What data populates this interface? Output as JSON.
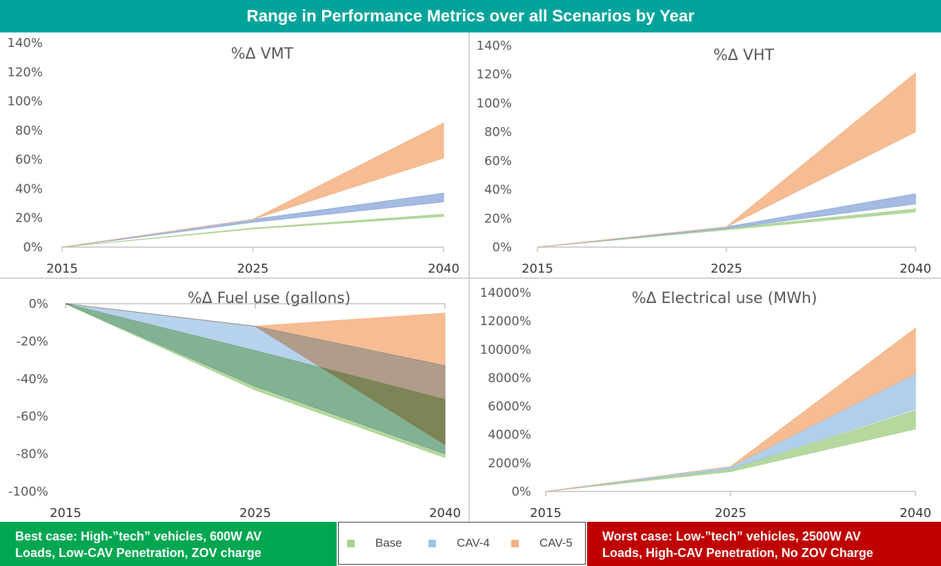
{
  "header": {
    "title": "Range in Performance Metrics over all Scenarios by Year"
  },
  "colors": {
    "header_bg": "#00a39a",
    "base": "#a9d18e",
    "cav4": "#9dc3e6",
    "cav5": "#f4b183",
    "best_bg": "#00a650",
    "worst_bg": "#c00000"
  },
  "legend": [
    {
      "label": "Base",
      "color": "#a9d18e"
    },
    {
      "label": "CAV-4",
      "color": "#9dc3e6"
    },
    {
      "label": "CAV-5",
      "color": "#f4b183"
    }
  ],
  "best_case": {
    "line1": "Best case: High-”tech”  vehicles, 600W AV",
    "line2": "Loads, Low-CAV Penetration, ZOV charge"
  },
  "worst_case": {
    "line1": "Worst case: Low-”tech” vehicles, 2500W AV",
    "line2": "Loads, High-CAV Penetration, No ZOV Charge"
  },
  "chart_data": [
    {
      "id": "vmt",
      "type": "area",
      "title": "%Δ VMT",
      "x": [
        "2015",
        "2025",
        "2040"
      ],
      "ylim": [
        0,
        140
      ],
      "yticks": [
        "0%",
        "20%",
        "40%",
        "60%",
        "80%",
        "100%",
        "120%",
        "140%"
      ],
      "series": [
        {
          "name": "Base",
          "lower": [
            0,
            12.5,
            21
          ],
          "upper": [
            0,
            13,
            22.5
          ]
        },
        {
          "name": "CAV-4",
          "lower": [
            0,
            17,
            31
          ],
          "upper": [
            0,
            19,
            37
          ]
        },
        {
          "name": "CAV-5",
          "lower": [
            0,
            19,
            61
          ],
          "upper": [
            0,
            19,
            85
          ]
        }
      ]
    },
    {
      "id": "vht",
      "type": "area",
      "title": "%Δ VHT",
      "x": [
        "2015",
        "2025",
        "2040"
      ],
      "ylim": [
        0,
        140
      ],
      "yticks": [
        "0%",
        "20%",
        "40%",
        "60%",
        "80%",
        "100%",
        "120%",
        "140%"
      ],
      "series": [
        {
          "name": "Base",
          "lower": [
            0,
            12,
            24.5
          ],
          "upper": [
            0,
            13,
            26.5
          ]
        },
        {
          "name": "CAV-4",
          "lower": [
            0,
            13,
            30
          ],
          "upper": [
            0,
            14,
            37
          ]
        },
        {
          "name": "CAV-5",
          "lower": [
            0,
            14,
            80
          ],
          "upper": [
            0,
            14,
            121
          ]
        }
      ]
    },
    {
      "id": "fuel",
      "type": "area",
      "title": "%Δ Fuel use (gallons)",
      "x": [
        "2015",
        "2025",
        "2040"
      ],
      "ylim": [
        -100,
        0
      ],
      "yticks": [
        "-100%",
        "-80%",
        "-60%",
        "-40%",
        "-20%",
        "0%"
      ],
      "series": [
        {
          "name": "CAV-5",
          "lower": [
            0,
            -12,
            -75
          ],
          "upper": [
            0,
            -12,
            -5
          ]
        },
        {
          "name": "Base",
          "lower": [
            0,
            -46,
            -82
          ],
          "upper": [
            0,
            -25,
            -51
          ]
        },
        {
          "name": "CAV-4",
          "lower": [
            0,
            -44,
            -80
          ],
          "upper": [
            0,
            -12,
            -33
          ]
        }
      ]
    },
    {
      "id": "elec",
      "type": "area",
      "title": "%Δ Electrical use (MWh)",
      "x": [
        "2015",
        "2025",
        "2040"
      ],
      "ylim": [
        0,
        14000
      ],
      "yticks": [
        "0%",
        "2000%",
        "4000%",
        "6000%",
        "8000%",
        "10000%",
        "12000%",
        "14000%"
      ],
      "series": [
        {
          "name": "Base",
          "lower": [
            0,
            1400,
            4400
          ],
          "upper": [
            0,
            1550,
            5700
          ]
        },
        {
          "name": "CAV-4",
          "lower": [
            0,
            1600,
            5800
          ],
          "upper": [
            0,
            1750,
            8300
          ]
        },
        {
          "name": "CAV-5",
          "lower": [
            0,
            1750,
            8300
          ],
          "upper": [
            0,
            1750,
            11500
          ]
        }
      ]
    }
  ]
}
